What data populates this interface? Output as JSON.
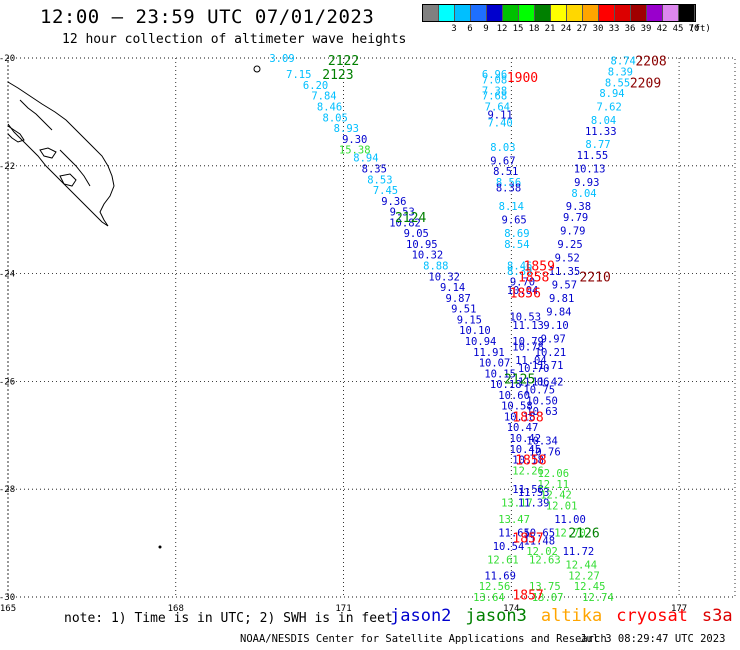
{
  "title": "12:00 — 23:59 UTC 07/01/2023",
  "subtitle": "12 hour collection of altimeter wave heights",
  "color_legend": {
    "unit": "(ft)",
    "levels": [
      {
        "label": "",
        "color": "#808080"
      },
      {
        "label": "3",
        "color": "#00ffff"
      },
      {
        "label": "6",
        "color": "#00bfff"
      },
      {
        "label": "9",
        "color": "#1e6fff"
      },
      {
        "label": "12",
        "color": "#0000cd"
      },
      {
        "label": "15",
        "color": "#00c000"
      },
      {
        "label": "18",
        "color": "#00ff00"
      },
      {
        "label": "21",
        "color": "#008000"
      },
      {
        "label": "24",
        "color": "#ffff00"
      },
      {
        "label": "27",
        "color": "#ffd700"
      },
      {
        "label": "30",
        "color": "#ffa500"
      },
      {
        "label": "33",
        "color": "#ff0000"
      },
      {
        "label": "36",
        "color": "#dc0000"
      },
      {
        "label": "39",
        "color": "#a00000"
      },
      {
        "label": "42",
        "color": "#9900cc"
      },
      {
        "label": "45",
        "color": "#dd88ee"
      },
      {
        "label": "70",
        "color": "#000000"
      }
    ]
  },
  "map": {
    "lon_range": [
      165,
      178
    ],
    "lat_range": [
      -30,
      -20
    ],
    "lon_ticks": [
      "165",
      "168",
      "171",
      "174",
      "177"
    ],
    "lat_ticks": [
      "-20",
      "-22",
      "-24",
      "-26",
      "-28",
      "-30"
    ],
    "grid": "dotted"
  },
  "track_colors": {
    "cyan": "#00bfff",
    "blue": "#0000cd",
    "lgreen": "#33dd33",
    "green": "#008000",
    "red": "#ff0000",
    "dred": "#8b0000"
  },
  "track_labels": [
    {
      "text": "2122",
      "lon": 171.0,
      "lat": -20.04,
      "c": "green"
    },
    {
      "text": "2123",
      "lon": 170.9,
      "lat": -20.3,
      "c": "green"
    },
    {
      "text": "1900",
      "lon": 174.2,
      "lat": -20.35,
      "c": "red"
    },
    {
      "text": "2208",
      "lon": 176.5,
      "lat": -20.05,
      "c": "dred"
    },
    {
      "text": "2209",
      "lon": 176.4,
      "lat": -20.45,
      "c": "dred"
    },
    {
      "text": "2124",
      "lon": 172.2,
      "lat": -22.95,
      "c": "green"
    },
    {
      "text": "1859",
      "lon": 174.5,
      "lat": -23.85,
      "c": "red"
    },
    {
      "text": "1858",
      "lon": 174.4,
      "lat": -24.05,
      "c": "red"
    },
    {
      "text": "2210",
      "lon": 175.5,
      "lat": -24.05,
      "c": "dred"
    },
    {
      "text": "1856",
      "lon": 174.25,
      "lat": -24.35,
      "c": "red"
    },
    {
      "text": "2125",
      "lon": 174.15,
      "lat": -25.95,
      "c": "green"
    },
    {
      "text": "1858",
      "lon": 174.3,
      "lat": -26.65,
      "c": "red"
    },
    {
      "text": "1858",
      "lon": 174.35,
      "lat": -27.45,
      "c": "red"
    },
    {
      "text": "2126",
      "lon": 175.3,
      "lat": -28.8,
      "c": "green"
    },
    {
      "text": "1857",
      "lon": 174.3,
      "lat": -28.9,
      "c": "red"
    },
    {
      "text": "1857",
      "lon": 174.3,
      "lat": -29.95,
      "c": "red"
    }
  ],
  "wave_heights": [
    {
      "v": "3.09",
      "lon": 169.9,
      "lat": -20.0,
      "c": "cyan"
    },
    {
      "v": "7.15",
      "lon": 170.2,
      "lat": -20.3,
      "c": "cyan"
    },
    {
      "v": "6.20",
      "lon": 170.5,
      "lat": -20.5,
      "c": "cyan"
    },
    {
      "v": "7.84",
      "lon": 170.65,
      "lat": -20.7,
      "c": "cyan"
    },
    {
      "v": "8.46",
      "lon": 170.75,
      "lat": -20.9,
      "c": "cyan"
    },
    {
      "v": "8.05",
      "lon": 170.85,
      "lat": -21.1,
      "c": "cyan"
    },
    {
      "v": "8.93",
      "lon": 171.05,
      "lat": -21.3,
      "c": "cyan"
    },
    {
      "v": "9.30",
      "lon": 171.2,
      "lat": -21.5,
      "c": "blue"
    },
    {
      "v": "15.38",
      "lon": 171.2,
      "lat": -21.7,
      "c": "lgreen"
    },
    {
      "v": "8.94",
      "lon": 171.4,
      "lat": -21.85,
      "c": "cyan"
    },
    {
      "v": "8.35",
      "lon": 171.55,
      "lat": -22.05,
      "c": "blue"
    },
    {
      "v": "8.53",
      "lon": 171.65,
      "lat": -22.25,
      "c": "cyan"
    },
    {
      "v": "7.45",
      "lon": 171.75,
      "lat": -22.45,
      "c": "cyan"
    },
    {
      "v": "9.36",
      "lon": 171.9,
      "lat": -22.65,
      "c": "blue"
    },
    {
      "v": "9.53",
      "lon": 172.05,
      "lat": -22.85,
      "c": "blue"
    },
    {
      "v": "10.82",
      "lon": 172.1,
      "lat": -23.05,
      "c": "blue"
    },
    {
      "v": "9.05",
      "lon": 172.3,
      "lat": -23.25,
      "c": "blue"
    },
    {
      "v": "10.95",
      "lon": 172.4,
      "lat": -23.45,
      "c": "blue"
    },
    {
      "v": "10.32",
      "lon": 172.5,
      "lat": -23.65,
      "c": "blue"
    },
    {
      "v": "8.88",
      "lon": 172.65,
      "lat": -23.85,
      "c": "cyan"
    },
    {
      "v": "10.32",
      "lon": 172.8,
      "lat": -24.05,
      "c": "blue"
    },
    {
      "v": "9.14",
      "lon": 172.95,
      "lat": -24.25,
      "c": "blue"
    },
    {
      "v": "9.87",
      "lon": 173.05,
      "lat": -24.45,
      "c": "blue"
    },
    {
      "v": "9.51",
      "lon": 173.15,
      "lat": -24.65,
      "c": "blue"
    },
    {
      "v": "9.15",
      "lon": 173.25,
      "lat": -24.85,
      "c": "blue"
    },
    {
      "v": "10.10",
      "lon": 173.35,
      "lat": -25.05,
      "c": "blue"
    },
    {
      "v": "10.94",
      "lon": 173.45,
      "lat": -25.25,
      "c": "blue"
    },
    {
      "v": "11.91",
      "lon": 173.6,
      "lat": -25.45,
      "c": "blue"
    },
    {
      "v": "10.07",
      "lon": 173.7,
      "lat": -25.65,
      "c": "blue"
    },
    {
      "v": "10.15",
      "lon": 173.8,
      "lat": -25.85,
      "c": "blue"
    },
    {
      "v": "10.18",
      "lon": 173.9,
      "lat": -26.05,
      "c": "blue"
    },
    {
      "v": "10.60",
      "lon": 174.05,
      "lat": -26.25,
      "c": "blue"
    },
    {
      "v": "10.58",
      "lon": 174.1,
      "lat": -26.45,
      "c": "blue"
    },
    {
      "v": "10.18",
      "lon": 174.15,
      "lat": -26.65,
      "c": "blue"
    },
    {
      "v": "10.47",
      "lon": 174.2,
      "lat": -26.85,
      "c": "blue"
    },
    {
      "v": "10.42",
      "lon": 174.25,
      "lat": -27.05,
      "c": "blue"
    },
    {
      "v": "10.45",
      "lon": 174.25,
      "lat": -27.25,
      "c": "blue"
    },
    {
      "v": "10.18",
      "lon": 174.3,
      "lat": -27.45,
      "c": "blue"
    },
    {
      "v": "12.26",
      "lon": 174.3,
      "lat": -27.65,
      "c": "lgreen"
    },
    {
      "v": "11.58",
      "lon": 174.3,
      "lat": -28.0,
      "c": "blue"
    },
    {
      "v": "13.17",
      "lon": 174.1,
      "lat": -28.25,
      "c": "lgreen"
    },
    {
      "v": "13.47",
      "lon": 174.05,
      "lat": -28.55,
      "c": "lgreen"
    },
    {
      "v": "11.65",
      "lon": 174.05,
      "lat": -28.8,
      "c": "blue"
    },
    {
      "v": "10.54",
      "lon": 173.95,
      "lat": -29.05,
      "c": "blue"
    },
    {
      "v": "12.61",
      "lon": 173.85,
      "lat": -29.3,
      "c": "lgreen"
    },
    {
      "v": "11.69",
      "lon": 173.8,
      "lat": -29.6,
      "c": "blue"
    },
    {
      "v": "12.56",
      "lon": 173.7,
      "lat": -29.8,
      "c": "lgreen"
    },
    {
      "v": "13.64",
      "lon": 173.6,
      "lat": -30.0,
      "c": "lgreen"
    },
    {
      "v": "6.96",
      "lon": 173.7,
      "lat": -20.3,
      "c": "cyan"
    },
    {
      "v": "7.08",
      "lon": 173.7,
      "lat": -20.4,
      "c": "cyan"
    },
    {
      "v": "7.38",
      "lon": 173.7,
      "lat": -20.6,
      "c": "cyan"
    },
    {
      "v": "7.68",
      "lon": 173.7,
      "lat": -20.7,
      "c": "cyan"
    },
    {
      "v": "7.64",
      "lon": 173.75,
      "lat": -20.9,
      "c": "cyan"
    },
    {
      "v": "9.11",
      "lon": 173.8,
      "lat": -21.05,
      "c": "blue"
    },
    {
      "v": "7.40",
      "lon": 173.8,
      "lat": -21.2,
      "c": "cyan"
    },
    {
      "v": "8.03",
      "lon": 173.85,
      "lat": -21.65,
      "c": "cyan"
    },
    {
      "v": "9.67",
      "lon": 173.85,
      "lat": -21.9,
      "c": "blue"
    },
    {
      "v": "8.51",
      "lon": 173.9,
      "lat": -22.1,
      "c": "blue"
    },
    {
      "v": "8.56",
      "lon": 173.95,
      "lat": -22.3,
      "c": "cyan"
    },
    {
      "v": "8.38",
      "lon": 173.95,
      "lat": -22.4,
      "c": "blue"
    },
    {
      "v": "8.14",
      "lon": 174.0,
      "lat": -22.75,
      "c": "cyan"
    },
    {
      "v": "9.65",
      "lon": 174.05,
      "lat": -23.0,
      "c": "blue"
    },
    {
      "v": "8.69",
      "lon": 174.1,
      "lat": -23.25,
      "c": "cyan"
    },
    {
      "v": "8.54",
      "lon": 174.1,
      "lat": -23.45,
      "c": "cyan"
    },
    {
      "v": "8.46",
      "lon": 174.15,
      "lat": -23.85,
      "c": "cyan"
    },
    {
      "v": "8.39",
      "lon": 174.15,
      "lat": -23.95,
      "c": "cyan"
    },
    {
      "v": "9.70",
      "lon": 174.2,
      "lat": -24.15,
      "c": "blue"
    },
    {
      "v": "10.04",
      "lon": 174.2,
      "lat": -24.3,
      "c": "blue"
    },
    {
      "v": "10.53",
      "lon": 174.25,
      "lat": -24.8,
      "c": "blue"
    },
    {
      "v": "11.13",
      "lon": 174.3,
      "lat": -24.95,
      "c": "blue"
    },
    {
      "v": "10.79",
      "lon": 174.3,
      "lat": -25.25,
      "c": "blue"
    },
    {
      "v": "10.78",
      "lon": 174.3,
      "lat": -25.35,
      "c": "blue"
    },
    {
      "v": "11.04",
      "lon": 174.35,
      "lat": -25.6,
      "c": "blue"
    },
    {
      "v": "10.70",
      "lon": 174.4,
      "lat": -25.75,
      "c": "blue"
    },
    {
      "v": "11.06",
      "lon": 174.4,
      "lat": -26.0,
      "c": "blue"
    },
    {
      "v": "11.42",
      "lon": 174.65,
      "lat": -26.0,
      "c": "blue"
    },
    {
      "v": "10.75",
      "lon": 174.5,
      "lat": -26.15,
      "c": "blue"
    },
    {
      "v": "10.50",
      "lon": 174.55,
      "lat": -26.35,
      "c": "blue"
    },
    {
      "v": "10.63",
      "lon": 174.55,
      "lat": -26.55,
      "c": "blue"
    },
    {
      "v": "10.34",
      "lon": 174.55,
      "lat": -27.1,
      "c": "blue"
    },
    {
      "v": "10.76",
      "lon": 174.6,
      "lat": -27.3,
      "c": "blue"
    },
    {
      "v": "12.06",
      "lon": 174.75,
      "lat": -27.7,
      "c": "lgreen"
    },
    {
      "v": "12.11",
      "lon": 174.75,
      "lat": -27.9,
      "c": "lgreen"
    },
    {
      "v": "11.53",
      "lon": 174.4,
      "lat": -28.05,
      "c": "blue"
    },
    {
      "v": "12.42",
      "lon": 174.8,
      "lat": -28.1,
      "c": "lgreen"
    },
    {
      "v": "11.39",
      "lon": 174.4,
      "lat": -28.25,
      "c": "blue"
    },
    {
      "v": "12.01",
      "lon": 174.9,
      "lat": -28.3,
      "c": "lgreen"
    },
    {
      "v": "11.00",
      "lon": 175.05,
      "lat": -28.55,
      "c": "blue"
    },
    {
      "v": "10.65",
      "lon": 174.5,
      "lat": -28.8,
      "c": "blue"
    },
    {
      "v": "12.70",
      "lon": 175.05,
      "lat": -28.8,
      "c": "lgreen"
    },
    {
      "v": "11.48",
      "lon": 174.5,
      "lat": -28.95,
      "c": "blue"
    },
    {
      "v": "12.02",
      "lon": 174.55,
      "lat": -29.15,
      "c": "lgreen"
    },
    {
      "v": "12.63",
      "lon": 174.6,
      "lat": -29.3,
      "c": "lgreen"
    },
    {
      "v": "11.72",
      "lon": 175.2,
      "lat": -29.15,
      "c": "blue"
    },
    {
      "v": "12.44",
      "lon": 175.25,
      "lat": -29.4,
      "c": "lgreen"
    },
    {
      "v": "12.27",
      "lon": 175.3,
      "lat": -29.6,
      "c": "lgreen"
    },
    {
      "v": "13.75",
      "lon": 174.6,
      "lat": -29.8,
      "c": "lgreen"
    },
    {
      "v": "12.45",
      "lon": 175.4,
      "lat": -29.8,
      "c": "lgreen"
    },
    {
      "v": "13.07",
      "lon": 174.65,
      "lat": -30.0,
      "c": "lgreen"
    },
    {
      "v": "12.74",
      "lon": 175.55,
      "lat": -30.0,
      "c": "lgreen"
    },
    {
      "v": "8.74",
      "lon": 176.0,
      "lat": -20.05,
      "c": "cyan"
    },
    {
      "v": "8.39",
      "lon": 175.95,
      "lat": -20.25,
      "c": "cyan"
    },
    {
      "v": "8.55",
      "lon": 175.9,
      "lat": -20.45,
      "c": "cyan"
    },
    {
      "v": "8.94",
      "lon": 175.8,
      "lat": -20.65,
      "c": "cyan"
    },
    {
      "v": "7.62",
      "lon": 175.75,
      "lat": -20.9,
      "c": "cyan"
    },
    {
      "v": "8.04",
      "lon": 175.65,
      "lat": -21.15,
      "c": "cyan"
    },
    {
      "v": "11.33",
      "lon": 175.6,
      "lat": -21.35,
      "c": "blue"
    },
    {
      "v": "8.77",
      "lon": 175.55,
      "lat": -21.6,
      "c": "cyan"
    },
    {
      "v": "11.55",
      "lon": 175.45,
      "lat": -21.8,
      "c": "blue"
    },
    {
      "v": "10.13",
      "lon": 175.4,
      "lat": -22.05,
      "c": "blue"
    },
    {
      "v": "9.93",
      "lon": 175.35,
      "lat": -22.3,
      "c": "blue"
    },
    {
      "v": "8.04",
      "lon": 175.3,
      "lat": -22.5,
      "c": "cyan"
    },
    {
      "v": "9.38",
      "lon": 175.2,
      "lat": -22.75,
      "c": "blue"
    },
    {
      "v": "9.79",
      "lon": 175.15,
      "lat": -22.95,
      "c": "blue"
    },
    {
      "v": "9.79",
      "lon": 175.1,
      "lat": -23.2,
      "c": "blue"
    },
    {
      "v": "9.25",
      "lon": 175.05,
      "lat": -23.45,
      "c": "blue"
    },
    {
      "v": "9.52",
      "lon": 175.0,
      "lat": -23.7,
      "c": "blue"
    },
    {
      "v": "11.35",
      "lon": 174.95,
      "lat": -23.95,
      "c": "blue"
    },
    {
      "v": "9.57",
      "lon": 174.95,
      "lat": -24.2,
      "c": "blue"
    },
    {
      "v": "9.81",
      "lon": 174.9,
      "lat": -24.45,
      "c": "blue"
    },
    {
      "v": "9.84",
      "lon": 174.85,
      "lat": -24.7,
      "c": "blue"
    },
    {
      "v": "9.10",
      "lon": 174.8,
      "lat": -24.95,
      "c": "blue"
    },
    {
      "v": "9.97",
      "lon": 174.75,
      "lat": -25.2,
      "c": "blue"
    },
    {
      "v": "10.21",
      "lon": 174.7,
      "lat": -25.45,
      "c": "blue"
    },
    {
      "v": "11.71",
      "lon": 174.65,
      "lat": -25.7,
      "c": "blue"
    }
  ],
  "note": "note: 1) Time is in UTC; 2) SWH is in feet",
  "satellites": [
    {
      "name": "jason2",
      "color": "#0000cd"
    },
    {
      "name": "jason3",
      "color": "#008000"
    },
    {
      "name": "altika",
      "color": "#ffa500"
    },
    {
      "name": "cryosat",
      "color": "#ff0000"
    },
    {
      "name": "s3a",
      "color": "#dc0000"
    }
  ],
  "credit": "NOAA/NESDIS Center for Satellite Applications and Research",
  "timestamp": "Jul  3 08:29:47 UTC 2023"
}
